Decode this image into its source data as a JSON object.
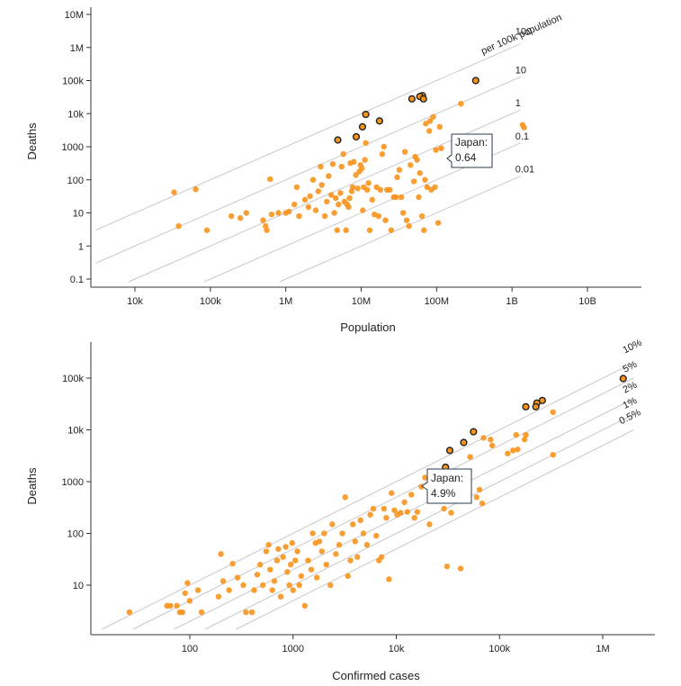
{
  "colors": {
    "dot": "#f7941d",
    "highlight_stroke": "#222222",
    "axis": "#333333",
    "ref_line": "#c8c8c8"
  },
  "chart_data": [
    {
      "type": "scatter",
      "xscale": "log",
      "yscale": "log",
      "xlabel": "Population",
      "ylabel": "Deaths",
      "xlim": [
        2000,
        30000000000
      ],
      "ylim": [
        0.07,
        30000000
      ],
      "x_ticks": [
        {
          "v": 10000,
          "label": "10k"
        },
        {
          "v": 100000,
          "label": "100k"
        },
        {
          "v": 1000000,
          "label": "1M"
        },
        {
          "v": 10000000,
          "label": "10M"
        },
        {
          "v": 100000000,
          "label": "100M"
        },
        {
          "v": 1000000000,
          "label": "1B"
        },
        {
          "v": 10000000000,
          "label": "10B"
        }
      ],
      "y_ticks": [
        {
          "v": 0.1,
          "label": "0.1"
        },
        {
          "v": 1,
          "label": "1"
        },
        {
          "v": 10,
          "label": "10"
        },
        {
          "v": 100,
          "label": "100"
        },
        {
          "v": 1000,
          "label": "1000"
        },
        {
          "v": 10000,
          "label": "10k"
        },
        {
          "v": 100000,
          "label": "100k"
        },
        {
          "v": 1000000,
          "label": "1M"
        },
        {
          "v": 10000000,
          "label": "10M"
        }
      ],
      "reference_lines": [
        {
          "rate": 0.001,
          "label": "100",
          "sublabel": "per 100k population"
        },
        {
          "rate": 0.0001,
          "label": "10"
        },
        {
          "rate": 1e-05,
          "label": "1"
        },
        {
          "rate": 1e-06,
          "label": "0.1"
        },
        {
          "rate": 1e-07,
          "label": "0.01"
        }
      ],
      "callout": {
        "x": 126000000,
        "y": 800,
        "line1": "Japan:",
        "line2": "0.64"
      },
      "highlighted_points": [
        {
          "x": 330000000,
          "y": 100000
        },
        {
          "x": 65000000,
          "y": 35000
        },
        {
          "x": 60000000,
          "y": 33000
        },
        {
          "x": 67000000,
          "y": 28000
        },
        {
          "x": 47000000,
          "y": 28000
        },
        {
          "x": 11500000,
          "y": 9500
        },
        {
          "x": 17500000,
          "y": 6000
        },
        {
          "x": 10400000,
          "y": 4000
        },
        {
          "x": 8600000,
          "y": 2000
        },
        {
          "x": 4900000,
          "y": 1600
        }
      ],
      "points": [
        {
          "x": 33000,
          "y": 42
        },
        {
          "x": 38000,
          "y": 4
        },
        {
          "x": 64000,
          "y": 52
        },
        {
          "x": 90000,
          "y": 3
        },
        {
          "x": 190000,
          "y": 8
        },
        {
          "x": 250000,
          "y": 7
        },
        {
          "x": 300000,
          "y": 10
        },
        {
          "x": 500000,
          "y": 6
        },
        {
          "x": 540000,
          "y": 4
        },
        {
          "x": 560000,
          "y": 3
        },
        {
          "x": 620000,
          "y": 105
        },
        {
          "x": 650000,
          "y": 9
        },
        {
          "x": 800000,
          "y": 10
        },
        {
          "x": 1000000,
          "y": 10
        },
        {
          "x": 1100000,
          "y": 11
        },
        {
          "x": 1300000,
          "y": 18
        },
        {
          "x": 1400000,
          "y": 60
        },
        {
          "x": 1500000,
          "y": 8
        },
        {
          "x": 1800000,
          "y": 25
        },
        {
          "x": 2000000,
          "y": 15
        },
        {
          "x": 2100000,
          "y": 32
        },
        {
          "x": 2300000,
          "y": 100
        },
        {
          "x": 2500000,
          "y": 12
        },
        {
          "x": 2700000,
          "y": 45
        },
        {
          "x": 2900000,
          "y": 250
        },
        {
          "x": 3000000,
          "y": 70
        },
        {
          "x": 3300000,
          "y": 8
        },
        {
          "x": 3500000,
          "y": 22
        },
        {
          "x": 3700000,
          "y": 130
        },
        {
          "x": 4000000,
          "y": 35
        },
        {
          "x": 4200000,
          "y": 300
        },
        {
          "x": 4400000,
          "y": 10
        },
        {
          "x": 4600000,
          "y": 28
        },
        {
          "x": 4800000,
          "y": 3
        },
        {
          "x": 5000000,
          "y": 18
        },
        {
          "x": 5300000,
          "y": 40
        },
        {
          "x": 5500000,
          "y": 250
        },
        {
          "x": 5800000,
          "y": 600
        },
        {
          "x": 6000000,
          "y": 22
        },
        {
          "x": 6300000,
          "y": 3
        },
        {
          "x": 6500000,
          "y": 18
        },
        {
          "x": 6800000,
          "y": 15
        },
        {
          "x": 7000000,
          "y": 28
        },
        {
          "x": 7200000,
          "y": 320
        },
        {
          "x": 7500000,
          "y": 45
        },
        {
          "x": 7700000,
          "y": 60
        },
        {
          "x": 8000000,
          "y": 350
        },
        {
          "x": 8500000,
          "y": 140
        },
        {
          "x": 9000000,
          "y": 55
        },
        {
          "x": 9500000,
          "y": 180
        },
        {
          "x": 9800000,
          "y": 280
        },
        {
          "x": 10200000,
          "y": 220
        },
        {
          "x": 10500000,
          "y": 12
        },
        {
          "x": 10800000,
          "y": 60
        },
        {
          "x": 11200000,
          "y": 400
        },
        {
          "x": 11500000,
          "y": 1300
        },
        {
          "x": 12000000,
          "y": 50
        },
        {
          "x": 12500000,
          "y": 80
        },
        {
          "x": 13000000,
          "y": 3
        },
        {
          "x": 14000000,
          "y": 25
        },
        {
          "x": 15000000,
          "y": 9
        },
        {
          "x": 16000000,
          "y": 60
        },
        {
          "x": 17000000,
          "y": 8
        },
        {
          "x": 18000000,
          "y": 50
        },
        {
          "x": 19000000,
          "y": 600
        },
        {
          "x": 20000000,
          "y": 1000
        },
        {
          "x": 21000000,
          "y": 6
        },
        {
          "x": 22000000,
          "y": 50
        },
        {
          "x": 24000000,
          "y": 50
        },
        {
          "x": 25000000,
          "y": 3
        },
        {
          "x": 27000000,
          "y": 30
        },
        {
          "x": 29000000,
          "y": 30
        },
        {
          "x": 30000000,
          "y": 120
        },
        {
          "x": 32000000,
          "y": 200
        },
        {
          "x": 34000000,
          "y": 30
        },
        {
          "x": 36000000,
          "y": 10
        },
        {
          "x": 38000000,
          "y": 700
        },
        {
          "x": 40000000,
          "y": 6
        },
        {
          "x": 43000000,
          "y": 4
        },
        {
          "x": 45000000,
          "y": 280
        },
        {
          "x": 50000000,
          "y": 90
        },
        {
          "x": 52000000,
          "y": 500
        },
        {
          "x": 55000000,
          "y": 400
        },
        {
          "x": 58000000,
          "y": 30
        },
        {
          "x": 60000000,
          "y": 160
        },
        {
          "x": 64000000,
          "y": 8
        },
        {
          "x": 68000000,
          "y": 3
        },
        {
          "x": 70000000,
          "y": 100
        },
        {
          "x": 72000000,
          "y": 5000
        },
        {
          "x": 75000000,
          "y": 60
        },
        {
          "x": 80000000,
          "y": 3000
        },
        {
          "x": 82000000,
          "y": 6000
        },
        {
          "x": 85000000,
          "y": 50
        },
        {
          "x": 90000000,
          "y": 8000
        },
        {
          "x": 95000000,
          "y": 60
        },
        {
          "x": 98000000,
          "y": 800
        },
        {
          "x": 105000000,
          "y": 5
        },
        {
          "x": 110000000,
          "y": 4000
        },
        {
          "x": 115000000,
          "y": 900
        },
        {
          "x": 210000000,
          "y": 20000
        },
        {
          "x": 1380000000,
          "y": 4600
        },
        {
          "x": 1440000000,
          "y": 3800
        }
      ]
    },
    {
      "type": "scatter",
      "xscale": "log",
      "yscale": "log",
      "xlabel": "Confirmed cases",
      "ylabel": "Deaths",
      "xlim": [
        10,
        3000000
      ],
      "ylim": [
        1,
        500000
      ],
      "x_ticks": [
        {
          "v": 100,
          "label": "100"
        },
        {
          "v": 1000,
          "label": "1000"
        },
        {
          "v": 10000,
          "label": "10k"
        },
        {
          "v": 100000,
          "label": "100k"
        },
        {
          "v": 1000000,
          "label": "1M"
        }
      ],
      "y_ticks": [
        {
          "v": 10,
          "label": "10"
        },
        {
          "v": 100,
          "label": "100"
        },
        {
          "v": 1000,
          "label": "1000"
        },
        {
          "v": 10000,
          "label": "10k"
        },
        {
          "v": 100000,
          "label": "100k"
        }
      ],
      "reference_lines": [
        {
          "rate": 0.1,
          "label": "10%"
        },
        {
          "rate": 0.05,
          "label": "5%"
        },
        {
          "rate": 0.02,
          "label": "2%"
        },
        {
          "rate": 0.01,
          "label": "1%"
        },
        {
          "rate": 0.005,
          "label": "0.5%"
        }
      ],
      "callout": {
        "x": 16500,
        "y": 800,
        "line1": "Japan:",
        "line2": "4.9%"
      },
      "highlighted_points": [
        {
          "x": 1580000,
          "y": 98000
        },
        {
          "x": 260000,
          "y": 37000
        },
        {
          "x": 230000,
          "y": 33000
        },
        {
          "x": 225000,
          "y": 28000
        },
        {
          "x": 180000,
          "y": 28000
        },
        {
          "x": 56000,
          "y": 9200
        },
        {
          "x": 45000,
          "y": 5700
        },
        {
          "x": 33000,
          "y": 4000
        },
        {
          "x": 30000,
          "y": 1900
        }
      ],
      "points": [
        {
          "x": 26,
          "y": 3
        },
        {
          "x": 60,
          "y": 4
        },
        {
          "x": 65,
          "y": 4
        },
        {
          "x": 75,
          "y": 4
        },
        {
          "x": 80,
          "y": 3
        },
        {
          "x": 85,
          "y": 3
        },
        {
          "x": 90,
          "y": 7
        },
        {
          "x": 95,
          "y": 11
        },
        {
          "x": 100,
          "y": 5
        },
        {
          "x": 120,
          "y": 8
        },
        {
          "x": 130,
          "y": 3
        },
        {
          "x": 190,
          "y": 6
        },
        {
          "x": 200,
          "y": 40
        },
        {
          "x": 210,
          "y": 12
        },
        {
          "x": 240,
          "y": 8
        },
        {
          "x": 260,
          "y": 26
        },
        {
          "x": 290,
          "y": 14
        },
        {
          "x": 330,
          "y": 10
        },
        {
          "x": 350,
          "y": 3
        },
        {
          "x": 400,
          "y": 3
        },
        {
          "x": 420,
          "y": 8
        },
        {
          "x": 450,
          "y": 16
        },
        {
          "x": 480,
          "y": 25
        },
        {
          "x": 510,
          "y": 10
        },
        {
          "x": 550,
          "y": 45
        },
        {
          "x": 580,
          "y": 60
        },
        {
          "x": 600,
          "y": 20
        },
        {
          "x": 630,
          "y": 8
        },
        {
          "x": 660,
          "y": 12
        },
        {
          "x": 700,
          "y": 30
        },
        {
          "x": 720,
          "y": 50
        },
        {
          "x": 760,
          "y": 6
        },
        {
          "x": 800,
          "y": 35
        },
        {
          "x": 850,
          "y": 55
        },
        {
          "x": 880,
          "y": 18
        },
        {
          "x": 920,
          "y": 10
        },
        {
          "x": 950,
          "y": 25
        },
        {
          "x": 980,
          "y": 65
        },
        {
          "x": 1000,
          "y": 8
        },
        {
          "x": 1050,
          "y": 30
        },
        {
          "x": 1100,
          "y": 45
        },
        {
          "x": 1150,
          "y": 10
        },
        {
          "x": 1200,
          "y": 15
        },
        {
          "x": 1300,
          "y": 4
        },
        {
          "x": 1400,
          "y": 30
        },
        {
          "x": 1500,
          "y": 20
        },
        {
          "x": 1550,
          "y": 100
        },
        {
          "x": 1650,
          "y": 65
        },
        {
          "x": 1700,
          "y": 14
        },
        {
          "x": 1800,
          "y": 70
        },
        {
          "x": 1900,
          "y": 45
        },
        {
          "x": 2000,
          "y": 100
        },
        {
          "x": 2100,
          "y": 25
        },
        {
          "x": 2300,
          "y": 10
        },
        {
          "x": 2400,
          "y": 150
        },
        {
          "x": 2600,
          "y": 40
        },
        {
          "x": 2800,
          "y": 60
        },
        {
          "x": 3000,
          "y": 100
        },
        {
          "x": 3200,
          "y": 500
        },
        {
          "x": 3400,
          "y": 15
        },
        {
          "x": 3600,
          "y": 30
        },
        {
          "x": 3800,
          "y": 150
        },
        {
          "x": 4000,
          "y": 70
        },
        {
          "x": 4200,
          "y": 35
        },
        {
          "x": 4500,
          "y": 180
        },
        {
          "x": 4800,
          "y": 100
        },
        {
          "x": 5200,
          "y": 60
        },
        {
          "x": 5600,
          "y": 230
        },
        {
          "x": 6000,
          "y": 300
        },
        {
          "x": 6400,
          "y": 90
        },
        {
          "x": 6800,
          "y": 30
        },
        {
          "x": 7200,
          "y": 35
        },
        {
          "x": 7600,
          "y": 300
        },
        {
          "x": 8000,
          "y": 200
        },
        {
          "x": 8500,
          "y": 13
        },
        {
          "x": 9000,
          "y": 600
        },
        {
          "x": 9600,
          "y": 280
        },
        {
          "x": 10200,
          "y": 230
        },
        {
          "x": 11000,
          "y": 250
        },
        {
          "x": 12000,
          "y": 400
        },
        {
          "x": 12800,
          "y": 260
        },
        {
          "x": 14000,
          "y": 560
        },
        {
          "x": 15000,
          "y": 200
        },
        {
          "x": 16000,
          "y": 260
        },
        {
          "x": 17500,
          "y": 800
        },
        {
          "x": 19000,
          "y": 1200
        },
        {
          "x": 21000,
          "y": 150
        },
        {
          "x": 23000,
          "y": 1000
        },
        {
          "x": 26000,
          "y": 450
        },
        {
          "x": 29000,
          "y": 300
        },
        {
          "x": 31000,
          "y": 23
        },
        {
          "x": 34000,
          "y": 250
        },
        {
          "x": 37000,
          "y": 1300
        },
        {
          "x": 42000,
          "y": 21
        },
        {
          "x": 48000,
          "y": 1500
        },
        {
          "x": 52000,
          "y": 3000
        },
        {
          "x": 60000,
          "y": 500
        },
        {
          "x": 64000,
          "y": 700
        },
        {
          "x": 68000,
          "y": 380
        },
        {
          "x": 70000,
          "y": 7000
        },
        {
          "x": 82000,
          "y": 6500
        },
        {
          "x": 85000,
          "y": 5000
        },
        {
          "x": 120000,
          "y": 3500
        },
        {
          "x": 135000,
          "y": 4000
        },
        {
          "x": 145000,
          "y": 8000
        },
        {
          "x": 150000,
          "y": 4200
        },
        {
          "x": 175000,
          "y": 6500
        },
        {
          "x": 180000,
          "y": 8000
        },
        {
          "x": 330000,
          "y": 22000
        },
        {
          "x": 330000,
          "y": 3300
        }
      ]
    }
  ]
}
